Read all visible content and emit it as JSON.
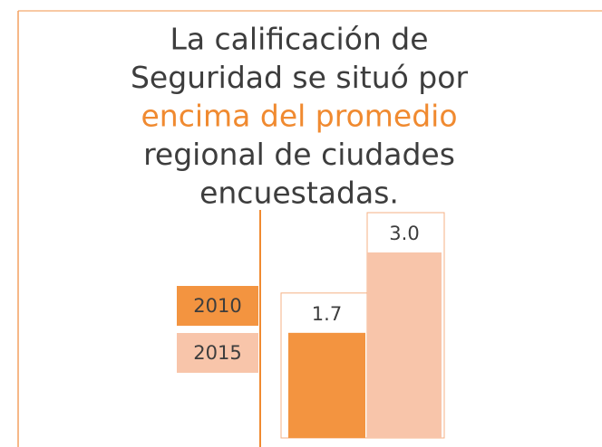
{
  "chart_data": {
    "type": "bar",
    "title_lines": [
      {
        "text": "La calificación de",
        "color": "#3d3d3d"
      },
      {
        "text": "Seguridad se situó por",
        "color": "#3d3d3d"
      },
      {
        "text": "encima del promedio",
        "color": "#f08a30"
      },
      {
        "text": "regional de ciudades",
        "color": "#3d3d3d"
      },
      {
        "text": "encuestadas.",
        "color": "#3d3d3d"
      }
    ],
    "series": [
      {
        "name": "2010",
        "color": "#f39440",
        "values": [
          1.7
        ],
        "value_labels": [
          "1.7"
        ]
      },
      {
        "name": "2015",
        "color": "#f8c5aa",
        "values": [
          3.0
        ],
        "value_labels": [
          "3.0"
        ]
      }
    ],
    "legend": "left"
  }
}
